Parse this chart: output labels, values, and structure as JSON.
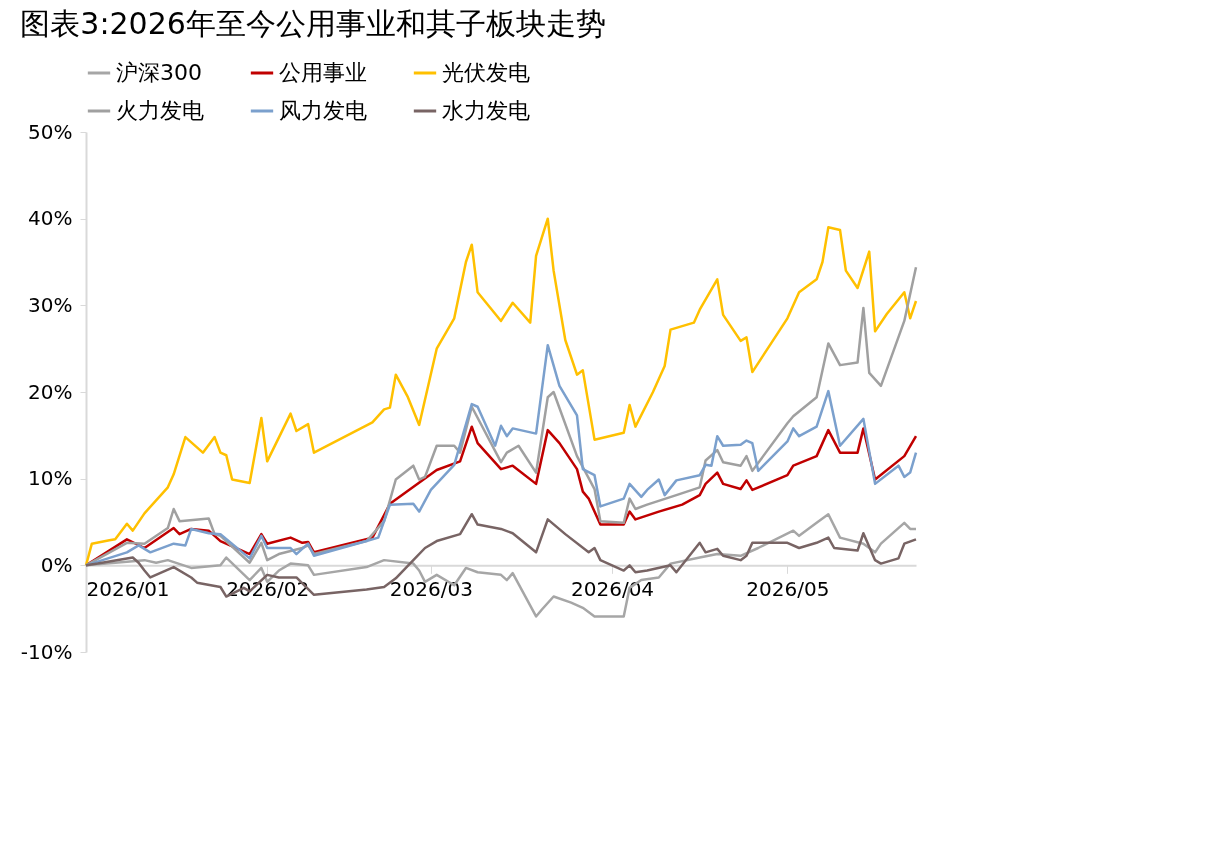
{
  "chart_data": {
    "type": "line",
    "title": "图表3:2026年至今公用事业和其子板块走势",
    "xlim": [
      "2026-01-01",
      "2026-05-23"
    ],
    "xticks": [
      {
        "value": "2026-01-01",
        "label": "2026/01"
      },
      {
        "value": "2026-02-01",
        "label": "2026/02"
      },
      {
        "value": "2026-03-01",
        "label": "2026/03"
      },
      {
        "value": "2026-04-01",
        "label": "2026/04"
      },
      {
        "value": "2026-05-01",
        "label": "2026/05"
      }
    ],
    "ylim": [
      -10,
      50
    ],
    "yticks": [
      {
        "value": -10,
        "label": "-10%"
      },
      {
        "value": 0,
        "label": "0%"
      },
      {
        "value": 10,
        "label": "10%"
      },
      {
        "value": 20,
        "label": "20%"
      },
      {
        "value": 30,
        "label": "30%"
      },
      {
        "value": 40,
        "label": "40%"
      },
      {
        "value": 50,
        "label": "50%"
      }
    ],
    "grid": false,
    "legend": "top",
    "series": [
      {
        "name": "沪深300",
        "color": "#a6a6a6",
        "x": [
          "2026-01-01",
          "2026-01-11",
          "2026-01-13",
          "2026-01-15",
          "2026-01-19",
          "2026-01-24",
          "2026-01-25",
          "2026-01-29",
          "2026-01-31",
          "2026-02-01",
          "2026-02-03",
          "2026-02-05",
          "2026-02-08",
          "2026-02-09",
          "2026-02-18",
          "2026-02-21",
          "2026-02-26",
          "2026-02-27",
          "2026-02-28",
          "2026-03-02",
          "2026-03-05",
          "2026-03-07",
          "2026-03-09",
          "2026-03-13",
          "2026-03-14",
          "2026-03-15",
          "2026-03-19",
          "2026-03-20",
          "2026-03-22",
          "2026-03-25",
          "2026-03-27",
          "2026-03-29",
          "2026-04-03",
          "2026-04-04",
          "2026-04-06",
          "2026-04-09",
          "2026-04-11",
          "2026-04-16",
          "2026-04-19",
          "2026-04-23",
          "2026-04-26",
          "2026-05-02",
          "2026-05-03",
          "2026-05-06",
          "2026-05-08",
          "2026-05-10",
          "2026-05-14",
          "2026-05-16",
          "2026-05-17",
          "2026-05-21",
          "2026-05-22",
          "2026-05-23"
        ],
        "values": [
          0,
          0.6,
          0.3,
          0.6,
          -0.3,
          0,
          0.9,
          -1.7,
          -0.3,
          -1.9,
          -0.6,
          0.2,
          0,
          -1.1,
          -0.2,
          0.6,
          0.2,
          -0.6,
          -1.9,
          -1.1,
          -2.3,
          -0.3,
          -0.8,
          -1.1,
          -1.7,
          -0.9,
          -5.9,
          -5.1,
          -3.6,
          -4.3,
          -4.9,
          -5.9,
          -5.9,
          -2.6,
          -1.7,
          -1.4,
          0.2,
          0.9,
          1.3,
          1.1,
          2,
          4,
          3.4,
          4.9,
          5.9,
          3.2,
          2.5,
          1.5,
          2.5,
          4.9,
          4.2,
          4.2
        ]
      },
      {
        "name": "公用事业",
        "color": "#c00000",
        "x": [
          "2026-01-01",
          "2026-01-08",
          "2026-01-11",
          "2026-01-16",
          "2026-01-17",
          "2026-01-19",
          "2026-01-22",
          "2026-01-24",
          "2026-01-29",
          "2026-01-31",
          "2026-02-01",
          "2026-02-05",
          "2026-02-07",
          "2026-02-08",
          "2026-02-09",
          "2026-02-19",
          "2026-02-22",
          "2026-03-02",
          "2026-03-06",
          "2026-03-08",
          "2026-03-09",
          "2026-03-13",
          "2026-03-15",
          "2026-03-19",
          "2026-03-21",
          "2026-03-23",
          "2026-03-26",
          "2026-03-27",
          "2026-03-28",
          "2026-03-30",
          "2026-04-03",
          "2026-04-04",
          "2026-04-05",
          "2026-04-09",
          "2026-04-13",
          "2026-04-16",
          "2026-04-17",
          "2026-04-19",
          "2026-04-20",
          "2026-04-23",
          "2026-04-24",
          "2026-04-25",
          "2026-05-01",
          "2026-05-02",
          "2026-05-06",
          "2026-05-08",
          "2026-05-10",
          "2026-05-13",
          "2026-05-14",
          "2026-05-16",
          "2026-05-21",
          "2026-05-23"
        ],
        "values": [
          0,
          3,
          2,
          4.3,
          3.6,
          4.2,
          4,
          2.8,
          1.3,
          3.6,
          2.5,
          3.2,
          2.6,
          2.7,
          1.5,
          3.2,
          7.1,
          11,
          12,
          16,
          14.1,
          11.1,
          11.5,
          9.4,
          15.6,
          14.1,
          11.1,
          8.5,
          7.7,
          4.7,
          4.7,
          6.2,
          5.3,
          6.2,
          7,
          8.1,
          9.4,
          10.7,
          9.4,
          8.8,
          9.8,
          8.7,
          10.4,
          11.5,
          12.6,
          15.6,
          13,
          13,
          15.8,
          9.9,
          12.6,
          14.9
        ]
      },
      {
        "name": "光伏发电",
        "color": "#ffc000",
        "x": [
          "2026-01-01",
          "2026-01-02",
          "2026-01-05",
          "2026-01-06",
          "2026-01-08",
          "2026-01-09",
          "2026-01-11",
          "2026-01-15",
          "2026-01-16",
          "2026-01-18",
          "2026-01-21",
          "2026-01-23",
          "2026-01-24",
          "2026-01-25",
          "2026-01-26",
          "2026-01-29",
          "2026-01-31",
          "2026-02-01",
          "2026-02-05",
          "2026-02-06",
          "2026-02-08",
          "2026-02-09",
          "2026-02-19",
          "2026-02-21",
          "2026-02-22",
          "2026-02-23",
          "2026-02-25",
          "2026-02-27",
          "2026-03-02",
          "2026-03-05",
          "2026-03-07",
          "2026-03-08",
          "2026-03-09",
          "2026-03-13",
          "2026-03-15",
          "2026-03-18",
          "2026-03-19",
          "2026-03-21",
          "2026-03-22",
          "2026-03-24",
          "2026-03-26",
          "2026-03-27",
          "2026-03-29",
          "2026-04-03",
          "2026-04-04",
          "2026-04-05",
          "2026-04-08",
          "2026-04-10",
          "2026-04-11",
          "2026-04-15",
          "2026-04-16",
          "2026-04-19",
          "2026-04-20",
          "2026-04-23",
          "2026-04-24",
          "2026-04-25",
          "2026-05-01",
          "2026-05-03",
          "2026-05-06",
          "2026-05-07",
          "2026-05-08",
          "2026-05-10",
          "2026-05-11",
          "2026-05-13",
          "2026-05-15",
          "2026-05-16",
          "2026-05-18",
          "2026-05-21",
          "2026-05-22",
          "2026-05-23"
        ],
        "values": [
          0,
          2.5,
          2.9,
          3,
          4.8,
          4,
          6,
          9,
          10.5,
          14.8,
          13,
          14.8,
          13,
          12.7,
          9.9,
          9.5,
          17,
          12,
          17.5,
          15.5,
          16.3,
          13,
          16.5,
          18,
          18.2,
          22,
          19.5,
          16.2,
          25,
          28.5,
          35,
          37,
          31.5,
          28.2,
          30.3,
          28,
          35.7,
          40,
          34,
          26,
          22,
          22.5,
          14.5,
          15.3,
          18.5,
          16,
          20,
          23,
          27.2,
          28,
          29.5,
          33,
          28.9,
          25.9,
          26.3,
          22.3,
          28.5,
          31.5,
          33,
          35,
          39,
          38.7,
          34,
          32,
          36.2,
          27,
          29,
          31.5,
          28.5,
          30.5
        ]
      },
      {
        "name": "火力发电",
        "color": "#a0a0a0",
        "x": [
          "2026-01-01",
          "2026-01-08",
          "2026-01-11",
          "2026-01-15",
          "2026-01-16",
          "2026-01-17",
          "2026-01-22",
          "2026-01-23",
          "2026-01-24",
          "2026-01-29",
          "2026-01-31",
          "2026-02-01",
          "2026-02-03",
          "2026-02-07",
          "2026-02-08",
          "2026-02-09",
          "2026-02-18",
          "2026-02-21",
          "2026-02-23",
          "2026-02-26",
          "2026-02-27",
          "2026-02-28",
          "2026-03-02",
          "2026-03-05",
          "2026-03-06",
          "2026-03-08",
          "2026-03-13",
          "2026-03-14",
          "2026-03-16",
          "2026-03-19",
          "2026-03-21",
          "2026-03-22",
          "2026-03-26",
          "2026-03-29",
          "2026-03-30",
          "2026-04-03",
          "2026-04-04",
          "2026-04-05",
          "2026-04-07",
          "2026-04-12",
          "2026-04-16",
          "2026-04-17",
          "2026-04-19",
          "2026-04-20",
          "2026-04-23",
          "2026-04-24",
          "2026-04-25",
          "2026-05-01",
          "2026-05-02",
          "2026-05-06",
          "2026-05-08",
          "2026-05-10",
          "2026-05-13",
          "2026-05-14",
          "2026-05-15",
          "2026-05-17",
          "2026-05-21",
          "2026-05-23"
        ],
        "values": [
          0,
          2.6,
          2.5,
          4.3,
          6.5,
          5.1,
          5.4,
          3.6,
          3.4,
          0.3,
          2.6,
          0.6,
          1.3,
          2,
          2.3,
          1.3,
          2.8,
          5.1,
          9.9,
          11.5,
          9.9,
          10.2,
          13.8,
          13.8,
          13,
          18.3,
          11.9,
          13,
          13.8,
          10.7,
          19.4,
          20,
          12.6,
          8.8,
          5.1,
          4.9,
          7.7,
          6.5,
          7,
          8.1,
          9,
          12.1,
          13.3,
          11.9,
          11.5,
          12.6,
          10.9,
          16.4,
          17.2,
          19.4,
          25.6,
          23.1,
          23.4,
          29.7,
          22.2,
          20.7,
          28.2,
          34.4
        ]
      },
      {
        "name": "风力发电",
        "color": "#7ba0cd",
        "x": [
          "2026-01-01",
          "2026-01-08",
          "2026-01-10",
          "2026-01-12",
          "2026-01-16",
          "2026-01-18",
          "2026-01-19",
          "2026-01-22",
          "2026-01-24",
          "2026-01-29",
          "2026-01-31",
          "2026-02-01",
          "2026-02-05",
          "2026-02-06",
          "2026-02-08",
          "2026-02-09",
          "2026-02-18",
          "2026-02-20",
          "2026-02-22",
          "2026-02-26",
          "2026-02-27",
          "2026-03-01",
          "2026-03-05",
          "2026-03-08",
          "2026-03-09",
          "2026-03-12",
          "2026-03-13",
          "2026-03-14",
          "2026-03-15",
          "2026-03-19",
          "2026-03-21",
          "2026-03-23",
          "2026-03-26",
          "2026-03-27",
          "2026-03-29",
          "2026-03-30",
          "2026-04-03",
          "2026-04-04",
          "2026-04-06",
          "2026-04-07",
          "2026-04-09",
          "2026-04-10",
          "2026-04-12",
          "2026-04-16",
          "2026-04-17",
          "2026-04-18",
          "2026-04-19",
          "2026-04-20",
          "2026-04-23",
          "2026-04-24",
          "2026-04-25",
          "2026-04-26",
          "2026-05-01",
          "2026-05-02",
          "2026-05-03",
          "2026-05-06",
          "2026-05-08",
          "2026-05-10",
          "2026-05-14",
          "2026-05-16",
          "2026-05-20",
          "2026-05-21",
          "2026-05-22",
          "2026-05-23"
        ],
        "values": [
          0,
          1.5,
          2.3,
          1.5,
          2.5,
          2.3,
          4.2,
          3.7,
          3.6,
          0.8,
          3.4,
          2,
          2,
          1.3,
          2.5,
          1.1,
          2.8,
          3.2,
          7,
          7.1,
          6.2,
          8.7,
          11.6,
          18.6,
          18.3,
          13.8,
          16.1,
          14.9,
          15.8,
          15.2,
          25.4,
          20.7,
          17.3,
          11.1,
          10.4,
          6.8,
          7.7,
          9.4,
          7.9,
          8.7,
          9.9,
          8.1,
          9.8,
          10.4,
          11.6,
          11.5,
          14.9,
          13.8,
          13.9,
          14.4,
          14.1,
          10.9,
          14.3,
          15.8,
          14.9,
          16,
          20.1,
          13.8,
          16.9,
          9.4,
          11.5,
          10.2,
          10.7,
          13
        ]
      },
      {
        "name": "水力发电",
        "color": "#786464",
        "x": [
          "2026-01-01",
          "2026-01-03",
          "2026-01-09",
          "2026-01-10",
          "2026-01-11",
          "2026-01-12",
          "2026-01-16",
          "2026-01-19",
          "2026-01-20",
          "2026-01-24",
          "2026-01-25",
          "2026-01-28",
          "2026-01-29",
          "2026-02-01",
          "2026-02-03",
          "2026-02-06",
          "2026-02-09",
          "2026-02-18",
          "2026-02-21",
          "2026-02-23",
          "2026-02-26",
          "2026-02-28",
          "2026-03-02",
          "2026-03-06",
          "2026-03-08",
          "2026-03-09",
          "2026-03-13",
          "2026-03-15",
          "2026-03-19",
          "2026-03-21",
          "2026-03-24",
          "2026-03-28",
          "2026-03-29",
          "2026-03-30",
          "2026-04-03",
          "2026-04-04",
          "2026-04-05",
          "2026-04-07",
          "2026-04-11",
          "2026-04-12",
          "2026-04-16",
          "2026-04-17",
          "2026-04-19",
          "2026-04-20",
          "2026-04-23",
          "2026-04-24",
          "2026-04-25",
          "2026-05-01",
          "2026-05-03",
          "2026-05-06",
          "2026-05-08",
          "2026-05-09",
          "2026-05-13",
          "2026-05-14",
          "2026-05-16",
          "2026-05-17",
          "2026-05-20",
          "2026-05-21",
          "2026-05-23"
        ],
        "values": [
          0,
          0.2,
          0.9,
          0.3,
          -0.6,
          -1.4,
          -0.2,
          -1.4,
          -2,
          -2.5,
          -3.6,
          -2.6,
          -3,
          -1.1,
          -1.4,
          -1.4,
          -3.4,
          -2.8,
          -2.5,
          -1.5,
          0.6,
          2,
          2.8,
          3.6,
          5.9,
          4.7,
          4.2,
          3.7,
          1.5,
          5.3,
          3.6,
          1.5,
          2,
          0.6,
          -0.6,
          0,
          -0.8,
          -0.6,
          0,
          -0.8,
          2.6,
          1.5,
          1.9,
          1.1,
          0.6,
          1.1,
          2.6,
          2.6,
          2,
          2.6,
          3.2,
          2,
          1.7,
          3.7,
          0.6,
          0.2,
          0.8,
          2.5,
          3
        ]
      }
    ]
  }
}
